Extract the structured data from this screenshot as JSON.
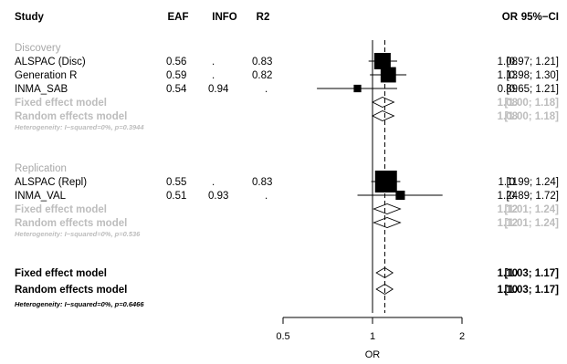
{
  "chart_data": {
    "type": "forest",
    "columns": {
      "study": "Study",
      "eaf": "EAF",
      "info": "INFO",
      "r2": "R2",
      "or": "OR",
      "ci": "95%−CI"
    },
    "groups": [
      {
        "name": "Discovery",
        "studies": [
          {
            "label": "ALSPAC (Disc)",
            "eaf": "0.56",
            "info": ".",
            "r2": "0.83",
            "or": 1.08,
            "lower": 0.97,
            "upper": 1.21,
            "or_text": "1.08",
            "ci_text": "[0.97; 1.21]",
            "weight": 0.48
          },
          {
            "label": "Generation R",
            "eaf": "0.59",
            "info": ".",
            "r2": "0.82",
            "or": 1.13,
            "lower": 0.98,
            "upper": 1.3,
            "or_text": "1.13",
            "ci_text": "[0.98; 1.30]",
            "weight": 0.42
          },
          {
            "label": "INMA_SAB",
            "eaf": "0.54",
            "info": "0.94",
            "r2": ".",
            "or": 0.89,
            "lower": 0.65,
            "upper": 1.21,
            "or_text": "0.89",
            "ci_text": "[0.65; 1.21]",
            "weight": 0.1
          }
        ],
        "fixed": {
          "label": "Fixed effect model",
          "or": 1.08,
          "lower": 1.0,
          "upper": 1.18,
          "or_text": "1.08",
          "ci_text": "[1.00; 1.18]"
        },
        "random": {
          "label": "Random effects model",
          "or": 1.08,
          "lower": 1.0,
          "upper": 1.18,
          "or_text": "1.08",
          "ci_text": "[1.00; 1.18]"
        },
        "heterogeneity": "Heterogeneity: I−squared=0%, p=0.3944"
      },
      {
        "name": "Replication",
        "studies": [
          {
            "label": "ALSPAC (Repl)",
            "eaf": "0.55",
            "info": ".",
            "r2": "0.83",
            "or": 1.11,
            "lower": 0.99,
            "upper": 1.24,
            "or_text": "1.11",
            "ci_text": "[0.99; 1.24]",
            "weight": 0.85
          },
          {
            "label": "INMA_VAL",
            "eaf": "0.51",
            "info": "0.93",
            "r2": ".",
            "or": 1.24,
            "lower": 0.89,
            "upper": 1.72,
            "or_text": "1.24",
            "ci_text": "[0.89; 1.72]",
            "weight": 0.15
          }
        ],
        "fixed": {
          "label": "Fixed effect model",
          "or": 1.12,
          "lower": 1.01,
          "upper": 1.24,
          "or_text": "1.12",
          "ci_text": "[1.01; 1.24]"
        },
        "random": {
          "label": "Random effects model",
          "or": 1.12,
          "lower": 1.01,
          "upper": 1.24,
          "or_text": "1.12",
          "ci_text": "[1.01; 1.24]"
        },
        "heterogeneity": "Heterogeneity: I−squared=0%, p=0.536"
      }
    ],
    "overall": {
      "fixed": {
        "label": "Fixed effect model",
        "or": 1.1,
        "lower": 1.03,
        "upper": 1.17,
        "or_text": "1.10",
        "ci_text": "[1.03; 1.17]"
      },
      "random": {
        "label": "Random effects model",
        "or": 1.1,
        "lower": 1.03,
        "upper": 1.17,
        "or_text": "1.10",
        "ci_text": "[1.03; 1.17]"
      },
      "heterogeneity": "Heterogeneity: I−squared=0%, p=0.6466"
    },
    "xlabel": "OR",
    "xscale": "log",
    "xlim": [
      0.5,
      2
    ],
    "xticks": [
      0.5,
      1,
      2
    ],
    "reference_line": 1,
    "summary_line": 1.1
  }
}
